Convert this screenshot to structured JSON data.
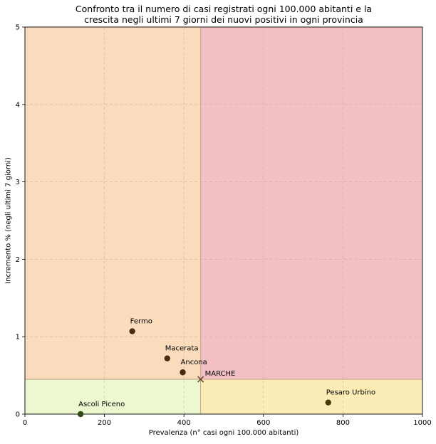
{
  "chart_data": {
    "type": "scatter",
    "title_line1": "Confronto tra il numero di casi registrati ogni 100.000 abitanti e la",
    "title_line2": "crescita negli ultimi 7 giorni dei nuovi positivi in ogni provincia",
    "xlabel": "Prevalenza (n° casi ogni 100.000 abitanti)",
    "ylabel": "Incremento % (negli ultimi 7 giorni)",
    "xlim": [
      0,
      1000
    ],
    "ylim": [
      0,
      5
    ],
    "xticks": [
      0,
      200,
      400,
      600,
      800,
      1000
    ],
    "yticks": [
      0,
      1,
      2,
      3,
      4,
      5
    ],
    "xtick_labels": [
      "0",
      "200",
      "400",
      "600",
      "800",
      "1000"
    ],
    "ytick_labels": [
      "0",
      "1",
      "2",
      "3",
      "4",
      "5"
    ],
    "grid": true,
    "thresholds": {
      "x": 442,
      "y": 0.45
    },
    "quadrants": [
      {
        "name": "low-prevalence-high-growth",
        "x": [
          0,
          442
        ],
        "y": [
          0.45,
          5
        ],
        "color": "#fadbbb"
      },
      {
        "name": "high-prevalence-high-growth",
        "x": [
          442,
          1000
        ],
        "y": [
          0.45,
          5
        ],
        "color": "#f2c0c4"
      },
      {
        "name": "low-prevalence-low-growth",
        "x": [
          0,
          442
        ],
        "y": [
          0,
          0.45
        ],
        "color": "#ebf8d0"
      },
      {
        "name": "high-prevalence-low-growth",
        "x": [
          442,
          1000
        ],
        "y": [
          0,
          0.45
        ],
        "color": "#fcedb6"
      }
    ],
    "points": [
      {
        "label": "Fermo",
        "x": 270,
        "y": 1.07,
        "color": "#4a2a12",
        "marker": "circle"
      },
      {
        "label": "Macerata",
        "x": 358,
        "y": 0.72,
        "color": "#4a2a12",
        "marker": "circle"
      },
      {
        "label": "Ancona",
        "x": 397,
        "y": 0.54,
        "color": "#4a2a12",
        "marker": "circle"
      },
      {
        "label": "Ascoli Piceno",
        "x": 140,
        "y": 0.0,
        "color": "#2f4a12",
        "marker": "circle"
      },
      {
        "label": "Pesaro Urbino",
        "x": 763,
        "y": 0.15,
        "color": "#4a3a06",
        "marker": "circle"
      },
      {
        "label": "MARCHE",
        "x": 442,
        "y": 0.45,
        "color": "#6b4a2a",
        "marker": "x"
      }
    ]
  }
}
